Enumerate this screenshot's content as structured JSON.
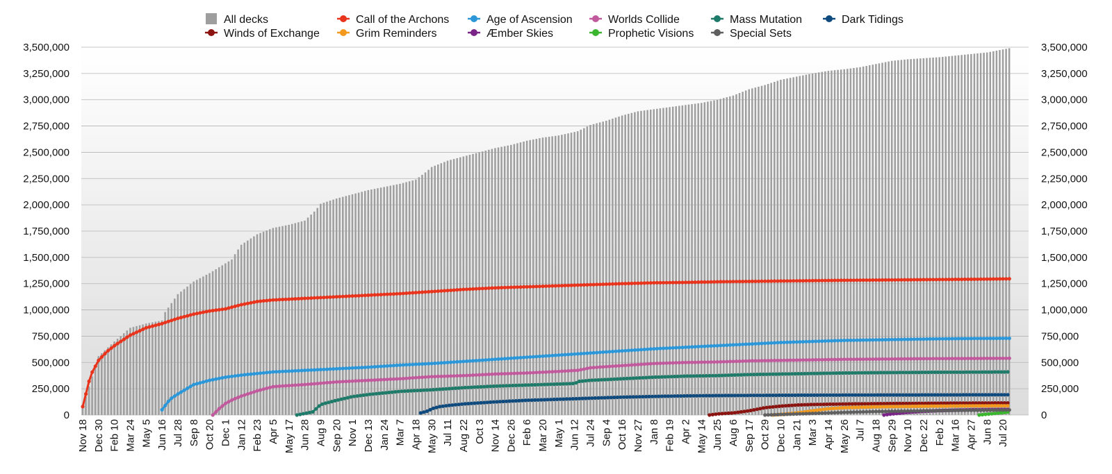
{
  "chart_data": {
    "type": "bar+line",
    "title": "",
    "xlabel": "",
    "ylabel": "",
    "ylim": [
      0,
      3500000
    ],
    "y_ticks": [
      0,
      250000,
      500000,
      750000,
      1000000,
      1250000,
      1500000,
      1750000,
      2000000,
      2250000,
      2500000,
      2750000,
      3000000,
      3250000,
      3500000
    ],
    "y_tick_labels": [
      "0",
      "250,000",
      "500,000",
      "750,000",
      "1,000,000",
      "1,250,000",
      "1,500,000",
      "1,750,000",
      "2,000,000",
      "2,250,000",
      "2,500,000",
      "2,750,000",
      "3,000,000",
      "3,250,000",
      "3,500,000"
    ],
    "x_tick_labels": [
      "Nov 18",
      "Dec 30",
      "Feb 10",
      "Mar 24",
      "May 5",
      "Jun 16",
      "Jul 28",
      "Sep 8",
      "Oct 20",
      "Dec 1",
      "Jan 12",
      "Feb 23",
      "Apr 5",
      "May 17",
      "Jun 28",
      "Aug 9",
      "Sep 20",
      "Nov 1",
      "Dec 13",
      "Jan 24",
      "Mar 7",
      "Apr 18",
      "May 30",
      "Jul 11",
      "Aug 22",
      "Oct 3",
      "Nov 14",
      "Dec 26",
      "Feb 6",
      "Mar 20",
      "May 1",
      "Jun 12",
      "Jul 24",
      "Sep 4",
      "Oct 16",
      "Nov 27",
      "Jan 8",
      "Feb 19",
      "Apr 2",
      "May 14",
      "Jun 25",
      "Aug 6",
      "Sep 17",
      "Oct 29",
      "Dec 10",
      "Jan 21",
      "Mar 3",
      "Apr 14",
      "May 26",
      "Jul 7",
      "Aug 18",
      "Sep 29",
      "Nov 10",
      "Dec 22",
      "Feb 2",
      "Mar 16",
      "Apr 27",
      "Jun 8",
      "Jul 20"
    ],
    "bar_series": {
      "name": "All decks",
      "color": "#9e9e9e",
      "x_tick_index": [
        0,
        1,
        2,
        3,
        4,
        5,
        5.2,
        6,
        7,
        8,
        9.4,
        9.6,
        10,
        11,
        12,
        13,
        14,
        14.7,
        15,
        16,
        17,
        18,
        19,
        20,
        21,
        21.7,
        22,
        23,
        24,
        25,
        26,
        27,
        28,
        29,
        30,
        31.2,
        32,
        33,
        34,
        35,
        36,
        37,
        38,
        39,
        40,
        41,
        42,
        43,
        44,
        45,
        46,
        47,
        48,
        49,
        50,
        51,
        52,
        53,
        54,
        55,
        56,
        57,
        58.4
      ],
      "values": [
        80000,
        560000,
        700000,
        830000,
        870000,
        900000,
        980000,
        1150000,
        1270000,
        1350000,
        1480000,
        1530000,
        1620000,
        1720000,
        1780000,
        1810000,
        1850000,
        1950000,
        2010000,
        2060000,
        2100000,
        2140000,
        2170000,
        2200000,
        2240000,
        2320000,
        2360000,
        2420000,
        2460000,
        2500000,
        2540000,
        2570000,
        2610000,
        2640000,
        2660000,
        2700000,
        2760000,
        2800000,
        2850000,
        2890000,
        2910000,
        2930000,
        2950000,
        2970000,
        3000000,
        3040000,
        3100000,
        3140000,
        3190000,
        3220000,
        3250000,
        3275000,
        3290000,
        3310000,
        3340000,
        3370000,
        3385000,
        3395000,
        3405000,
        3420000,
        3435000,
        3450000,
        3490000
      ]
    },
    "series": [
      {
        "name": "Call of the Archons",
        "color": "#e8341c",
        "x_tick_index": [
          0,
          0.5,
          1,
          1.5,
          2,
          3,
          4,
          5,
          6,
          7,
          8,
          9,
          10,
          11,
          12,
          14,
          16,
          18,
          20,
          22,
          24,
          26,
          28,
          30,
          32,
          34,
          36,
          38,
          40,
          44,
          48,
          52,
          56,
          58.4
        ],
        "values": [
          80000,
          380000,
          520000,
          600000,
          660000,
          760000,
          830000,
          870000,
          920000,
          960000,
          990000,
          1010000,
          1050000,
          1080000,
          1095000,
          1110000,
          1125000,
          1140000,
          1155000,
          1175000,
          1195000,
          1210000,
          1220000,
          1230000,
          1240000,
          1250000,
          1258000,
          1262000,
          1268000,
          1275000,
          1282000,
          1287000,
          1292000,
          1296000
        ]
      },
      {
        "name": "Age of Ascension",
        "color": "#2b97d8",
        "x_tick_index": [
          5,
          5.5,
          6,
          7,
          8,
          9,
          10,
          12,
          14,
          16,
          18,
          20,
          22,
          24,
          26,
          28,
          30,
          32,
          34,
          36,
          38,
          40,
          42,
          44,
          46,
          48,
          50,
          52,
          54,
          56,
          58.4
        ],
        "values": [
          50000,
          150000,
          200000,
          290000,
          330000,
          360000,
          380000,
          410000,
          425000,
          440000,
          455000,
          475000,
          490000,
          510000,
          530000,
          550000,
          570000,
          590000,
          610000,
          630000,
          645000,
          660000,
          675000,
          690000,
          700000,
          710000,
          715000,
          720000,
          725000,
          728000,
          730000
        ]
      },
      {
        "name": "Worlds Collide",
        "color": "#c05a9c",
        "x_tick_index": [
          8.2,
          8.6,
          9,
          9.5,
          10,
          11,
          12,
          14,
          16,
          18,
          20,
          22,
          24,
          26,
          28,
          30,
          31.2,
          32,
          34,
          36,
          38,
          40,
          42,
          44,
          46,
          48,
          50,
          52,
          54,
          56,
          58.4
        ],
        "values": [
          0,
          60000,
          110000,
          150000,
          180000,
          230000,
          270000,
          290000,
          315000,
          330000,
          345000,
          365000,
          375000,
          390000,
          400000,
          415000,
          425000,
          450000,
          470000,
          490000,
          500000,
          505000,
          515000,
          520000,
          525000,
          530000,
          532000,
          535000,
          537000,
          538000,
          540000
        ]
      },
      {
        "name": "Mass Mutation",
        "color": "#1e7b6a",
        "x_tick_index": [
          13.5,
          14,
          14.5,
          15,
          16,
          17,
          18,
          19,
          20,
          22,
          24,
          26,
          28,
          30,
          31,
          31.3,
          32,
          34,
          36,
          38,
          40,
          42,
          44,
          46,
          48,
          50,
          52,
          54,
          56,
          58.4
        ],
        "values": [
          0,
          15000,
          30000,
          100000,
          140000,
          175000,
          195000,
          210000,
          225000,
          240000,
          260000,
          275000,
          285000,
          295000,
          300000,
          320000,
          330000,
          345000,
          360000,
          370000,
          375000,
          385000,
          390000,
          395000,
          400000,
          403000,
          405000,
          407000,
          408000,
          410000
        ]
      },
      {
        "name": "Dark Tidings",
        "color": "#0e4a7e",
        "x_tick_index": [
          21.3,
          21.8,
          22,
          22.5,
          23,
          24,
          26,
          28,
          30,
          32,
          34,
          36,
          38,
          40,
          44,
          48,
          52,
          56,
          58.4
        ],
        "values": [
          20000,
          40000,
          60000,
          80000,
          90000,
          105000,
          125000,
          140000,
          150000,
          160000,
          170000,
          177000,
          182000,
          185000,
          188000,
          190000,
          191000,
          192000,
          193000
        ]
      },
      {
        "name": "Winds of Exchange",
        "color": "#8b1410",
        "x_tick_index": [
          39.5,
          40,
          41,
          42,
          43,
          44,
          45,
          46,
          48,
          50,
          52,
          54,
          56,
          58.4
        ],
        "values": [
          0,
          10000,
          20000,
          40000,
          70000,
          85000,
          95000,
          100000,
          105000,
          108000,
          110000,
          112000,
          114000,
          115000
        ]
      },
      {
        "name": "Grim Reminders",
        "color": "#f39a1e",
        "x_tick_index": [
          43.5,
          44,
          45,
          46,
          47,
          48,
          50,
          52,
          54,
          56,
          58.4
        ],
        "values": [
          0,
          5000,
          20000,
          40000,
          60000,
          70000,
          78000,
          82000,
          85000,
          87000,
          88000
        ]
      },
      {
        "name": "Æmber Skies",
        "color": "#7b2487",
        "x_tick_index": [
          50.5,
          51,
          52,
          53,
          54,
          55,
          56,
          57,
          58.4
        ],
        "values": [
          0,
          10000,
          25000,
          35000,
          42000,
          47000,
          50000,
          52000,
          53000
        ]
      },
      {
        "name": "Prophetic Visions",
        "color": "#3ab52e",
        "x_tick_index": [
          56.5,
          57,
          57.5,
          58,
          58.4
        ],
        "values": [
          0,
          8000,
          15000,
          22000,
          30000
        ]
      },
      {
        "name": "Special Sets",
        "color": "#5f5f5f",
        "x_tick_index": [
          43,
          44,
          46,
          48,
          50,
          52,
          54,
          56,
          58.4
        ],
        "values": [
          0,
          5000,
          15000,
          25000,
          33000,
          38000,
          42000,
          45000,
          48000
        ]
      }
    ],
    "legend": {
      "placement": "top",
      "entries": [
        {
          "label": "All decks",
          "marker": "square",
          "color": "#9e9e9e"
        },
        {
          "label": "Call of the Archons",
          "marker": "dot",
          "color": "#e8341c"
        },
        {
          "label": "Age of Ascension",
          "marker": "dot",
          "color": "#2b97d8"
        },
        {
          "label": "Worlds Collide",
          "marker": "dot",
          "color": "#c05a9c"
        },
        {
          "label": "Mass Mutation",
          "marker": "dot",
          "color": "#1e7b6a"
        },
        {
          "label": "Dark Tidings",
          "marker": "dot",
          "color": "#0e4a7e"
        },
        {
          "label": "Winds of Exchange",
          "marker": "dot",
          "color": "#8b1410"
        },
        {
          "label": "Grim Reminders",
          "marker": "dot",
          "color": "#f39a1e"
        },
        {
          "label": "Æmber Skies",
          "marker": "dot",
          "color": "#7b2487"
        },
        {
          "label": "Prophetic Visions",
          "marker": "dot",
          "color": "#3ab52e"
        },
        {
          "label": "Special Sets",
          "marker": "dot",
          "color": "#5f5f5f"
        }
      ]
    },
    "grid": true,
    "dual_y_axis": true
  }
}
